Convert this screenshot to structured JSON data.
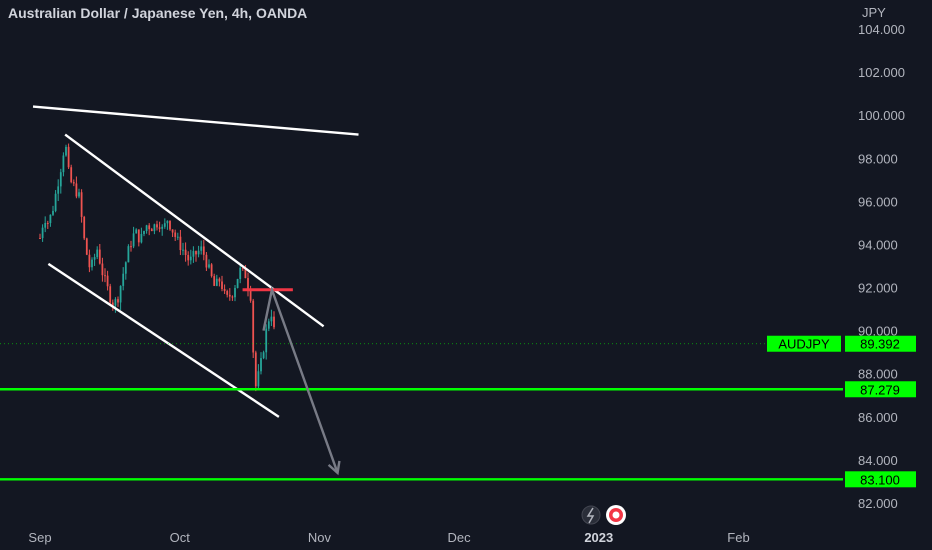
{
  "header": {
    "title": "Australian Dollar / Japanese Yen, 4h, OANDA",
    "currency": "JPY"
  },
  "chart_data": {
    "type": "candlestick",
    "price_axis": {
      "ticks": [
        "104.000",
        "102.000",
        "100.000",
        "98.000",
        "96.000",
        "94.000",
        "92.000",
        "90.000",
        "88.000",
        "86.000",
        "84.000",
        "82.000"
      ],
      "ylim": [
        81.2,
        104.8
      ]
    },
    "time_axis": {
      "ticks": [
        {
          "label": "Sep",
          "bold": false
        },
        {
          "label": "Oct",
          "bold": false
        },
        {
          "label": "Nov",
          "bold": false
        },
        {
          "label": "Dec",
          "bold": false
        },
        {
          "label": "2023",
          "bold": true
        },
        {
          "label": "Feb",
          "bold": false
        }
      ]
    },
    "candle_path": [
      [
        0,
        94.3
      ],
      [
        0.03,
        95.3
      ],
      [
        0.06,
        95.0
      ],
      [
        0.09,
        95.6
      ],
      [
        0.12,
        96.6
      ],
      [
        0.15,
        97.6
      ],
      [
        0.18,
        98.8
      ],
      [
        0.21,
        97.0
      ],
      [
        0.25,
        96.6
      ],
      [
        0.28,
        96.2
      ],
      [
        0.32,
        94.0
      ],
      [
        0.36,
        92.8
      ],
      [
        0.41,
        93.8
      ],
      [
        0.45,
        92.6
      ],
      [
        0.5,
        91.6
      ],
      [
        0.53,
        91.2
      ],
      [
        0.56,
        91.6
      ],
      [
        0.6,
        92.8
      ],
      [
        0.64,
        93.9
      ],
      [
        0.68,
        94.6
      ],
      [
        0.72,
        94.2
      ],
      [
        0.76,
        94.9
      ],
      [
        0.81,
        94.8
      ],
      [
        0.85,
        95.1
      ],
      [
        0.88,
        94.6
      ],
      [
        0.91,
        95.2
      ],
      [
        0.94,
        94.8
      ],
      [
        0.98,
        94.2
      ],
      [
        1.02,
        93.8
      ],
      [
        1.07,
        93.2
      ],
      [
        1.12,
        93.6
      ],
      [
        1.16,
        93.8
      ],
      [
        1.2,
        93.0
      ],
      [
        1.25,
        92.0
      ],
      [
        1.29,
        92.4
      ],
      [
        1.33,
        91.4
      ],
      [
        1.38,
        91.8
      ],
      [
        1.43,
        92.8
      ],
      [
        1.47,
        92.6
      ],
      [
        1.5,
        91.8
      ],
      [
        1.52,
        91.4
      ],
      [
        1.53,
        87.6
      ],
      [
        1.54,
        87.3
      ],
      [
        1.56,
        87.8
      ],
      [
        1.58,
        88.4
      ],
      [
        1.61,
        89.6
      ],
      [
        1.63,
        90.4
      ],
      [
        1.655,
        90.9
      ],
      [
        1.675,
        90.0
      ],
      [
        1.69,
        89.392
      ]
    ],
    "current_price": {
      "symbol": "AUDJPY",
      "value": "89.392",
      "price": 89.392,
      "color": "#00ff00"
    },
    "levels": [
      {
        "label": "87.279",
        "price": 87.279,
        "color": "#00ff00"
      },
      {
        "label": "83.100",
        "price": 83.1,
        "color": "#00ff00"
      }
    ],
    "drawings": {
      "upper_horizontal_line": {
        "from": [
          -0.05,
          100.4
        ],
        "to": [
          2.28,
          99.1
        ],
        "color": "#ffffff"
      },
      "channel_upper": {
        "from": [
          0.18,
          99.1
        ],
        "to": [
          2.03,
          90.2
        ],
        "color": "#ffffff"
      },
      "channel_lower": {
        "from": [
          0.06,
          93.1
        ],
        "to": [
          1.71,
          86.0
        ],
        "color": "#ffffff"
      },
      "resistance_segment": {
        "from": [
          1.45,
          91.9
        ],
        "to": [
          1.81,
          91.9
        ],
        "color": "#f23645"
      },
      "projection_arrow": {
        "points": [
          [
            1.6,
            90.0
          ],
          [
            1.66,
            91.9
          ],
          [
            2.13,
            83.4
          ]
        ],
        "color": "#787b86"
      }
    },
    "colors": {
      "background": "#131722",
      "up_candle": "#26a69a",
      "down_candle": "#ef5350",
      "green_level": "#00ff00"
    }
  }
}
